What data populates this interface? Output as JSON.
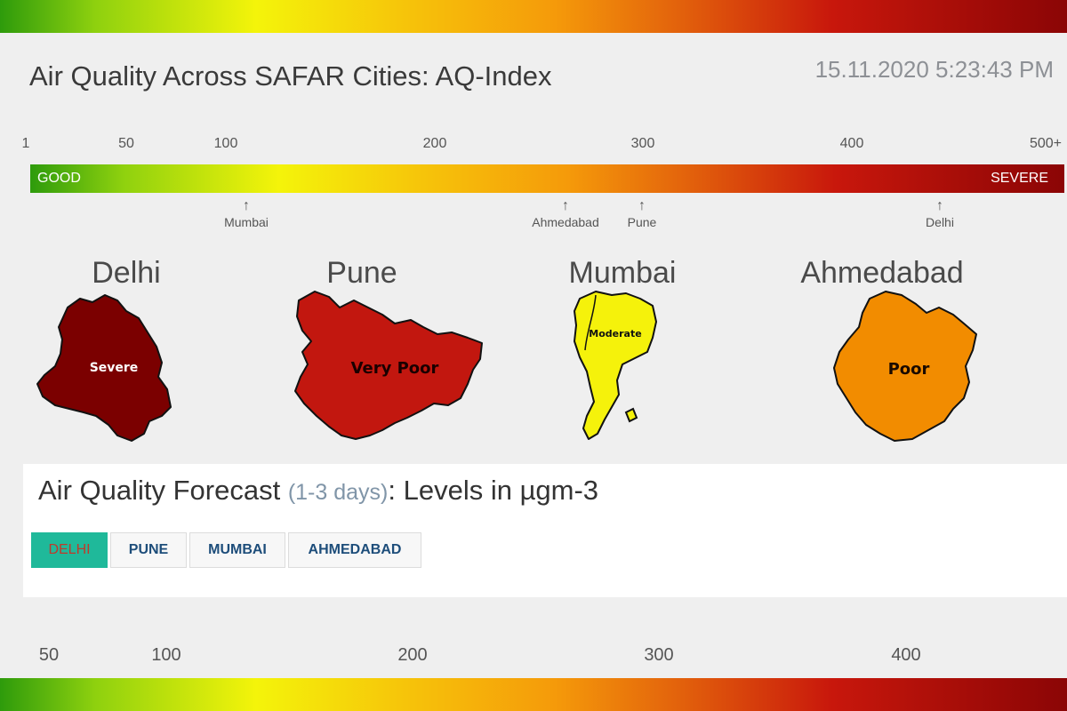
{
  "header": {
    "title": "Air Quality Across SAFAR Cities: AQ-Index",
    "timestamp": "15.11.2020 5:23:43 PM"
  },
  "scale": {
    "ticks": [
      "1",
      "50",
      "100",
      "200",
      "300",
      "400",
      "500+"
    ],
    "good_label": "GOOD",
    "severe_label": "SEVERE",
    "arrow_glyph": "↑",
    "markers": [
      {
        "city": "Mumbai",
        "aqi": 117
      },
      {
        "city": "Ahmedabad",
        "aqi": 262
      },
      {
        "city": "Pune",
        "aqi": 300
      },
      {
        "city": "Delhi",
        "aqi": 452
      }
    ]
  },
  "cities": [
    {
      "name": "Delhi",
      "category": "Severe",
      "color": "#7b0000"
    },
    {
      "name": "Pune",
      "category": "Very Poor",
      "color": "#c2170f"
    },
    {
      "name": "Mumbai",
      "category": "Moderate",
      "color": "#f5f20b"
    },
    {
      "name": "Ahmedabad",
      "category": "Poor",
      "color": "#f28c00"
    }
  ],
  "forecast": {
    "title_main": "Air Quality Forecast",
    "title_sub": "(1-3 days)",
    "title_rest": ": Levels in µgm-3",
    "tabs": [
      {
        "label": "DELHI",
        "active": true
      },
      {
        "label": "PUNE",
        "active": false
      },
      {
        "label": "MUMBAI",
        "active": false
      },
      {
        "label": "AHMEDABAD",
        "active": false
      }
    ]
  },
  "bottom_scale": {
    "ticks": [
      "50",
      "100",
      "200",
      "300",
      "400"
    ]
  }
}
